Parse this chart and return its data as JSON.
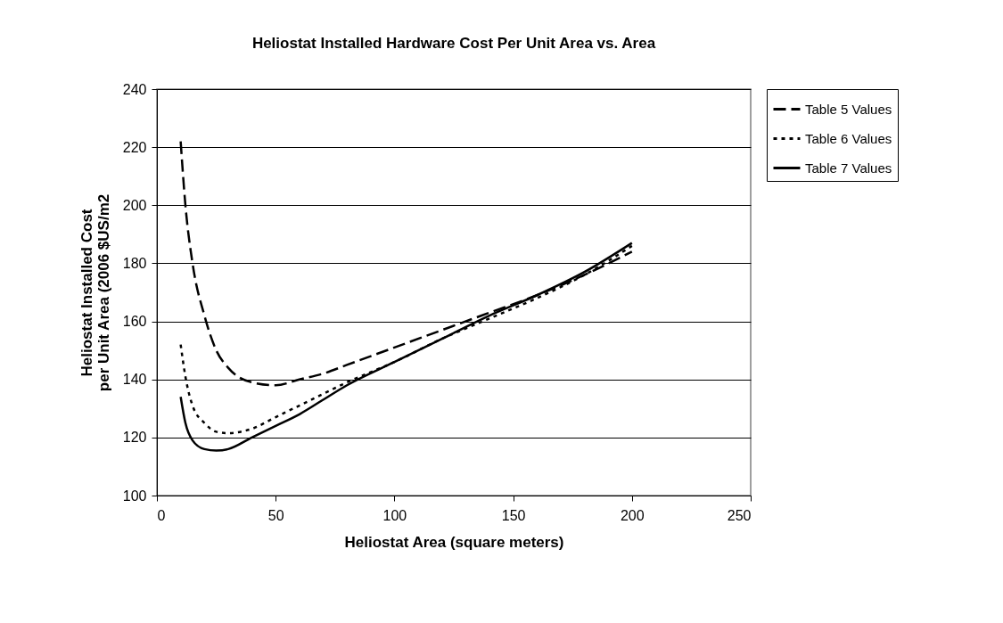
{
  "chart_data": {
    "type": "line",
    "title": "Heliostat Installed Hardware Cost Per Unit Area vs. Area",
    "xlabel": "Heliostat Area (square meters)",
    "ylabel": "Heliostat Installed Cost\nper Unit Area (2006 $US/m2",
    "x": [
      10,
      12,
      15,
      20,
      25,
      30,
      40,
      50,
      60,
      70,
      80,
      100,
      120,
      140,
      160,
      180,
      200
    ],
    "series": [
      {
        "name": "Table 5 Values",
        "color": "#000000",
        "line_style": "dashed",
        "values": [
          222,
          200,
          180,
          162,
          150,
          144,
          139,
          138,
          140,
          142,
          145,
          151,
          157,
          163,
          169,
          176,
          184
        ]
      },
      {
        "name": "Table 6 Values",
        "color": "#000000",
        "line_style": "dotted",
        "values": [
          152,
          141,
          131,
          125,
          122,
          121.5,
          123,
          127,
          131,
          135,
          139,
          146,
          154,
          161,
          168,
          176,
          186
        ]
      },
      {
        "name": "Table 7 Values",
        "color": "#000000",
        "line_style": "solid",
        "values": [
          134,
          125,
          119,
          116,
          115.5,
          116,
          120,
          124,
          128,
          133,
          138,
          146,
          154,
          162,
          169,
          177,
          187
        ]
      }
    ],
    "xlim": [
      0,
      250
    ],
    "xticks": [
      0,
      50,
      100,
      150,
      200,
      250
    ],
    "ylim": [
      100,
      240
    ],
    "yticks": [
      100,
      120,
      140,
      160,
      180,
      200,
      220,
      240
    ],
    "grid": "y",
    "legend": "right",
    "marker": "none"
  }
}
